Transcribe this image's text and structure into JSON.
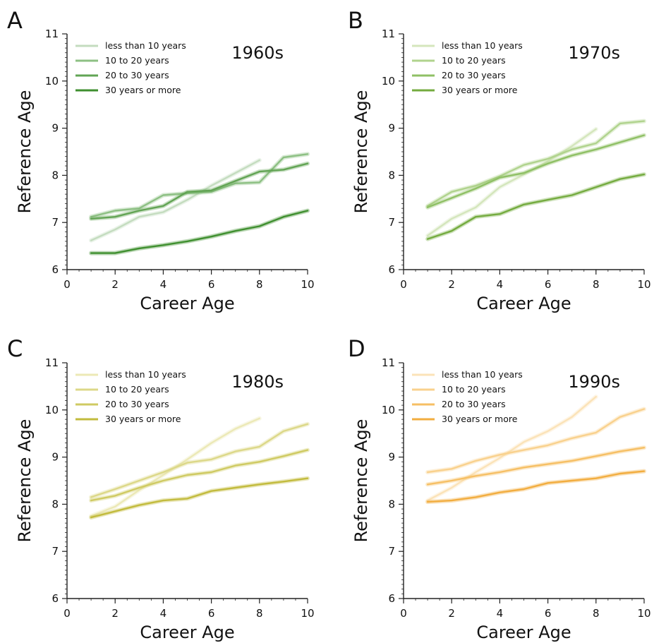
{
  "chart_data": [
    {
      "type": "line",
      "panel": "A",
      "title": "1960s",
      "xlabel": "Career Age",
      "ylabel": "Reference Age",
      "xlim": [
        0,
        10
      ],
      "ylim": [
        6,
        11
      ],
      "xticks": [
        "0",
        "2",
        "4",
        "6",
        "8",
        "10"
      ],
      "yticks": [
        "6",
        "7",
        "8",
        "9",
        "10",
        "11"
      ],
      "legend_position": "top-left",
      "colors": [
        "#c4dcbf",
        "#8dc083",
        "#62a454",
        "#3f8f2f"
      ],
      "series": [
        {
          "name": "less than 10 years",
          "x": [
            1,
            2,
            3,
            4,
            5,
            6,
            7,
            8
          ],
          "y": [
            6.62,
            6.85,
            7.12,
            7.22,
            7.48,
            7.78,
            8.05,
            8.32
          ]
        },
        {
          "name": "10 to 20 years",
          "x": [
            1,
            2,
            3,
            4,
            5,
            6,
            7,
            8,
            9,
            10
          ],
          "y": [
            7.12,
            7.25,
            7.3,
            7.58,
            7.62,
            7.65,
            7.83,
            7.85,
            8.38,
            8.45
          ]
        },
        {
          "name": "20 to 30 years",
          "x": [
            1,
            2,
            3,
            4,
            5,
            6,
            7,
            8,
            9,
            10
          ],
          "y": [
            7.08,
            7.12,
            7.25,
            7.35,
            7.65,
            7.68,
            7.88,
            8.08,
            8.12,
            8.25
          ]
        },
        {
          "name": "30 years or more",
          "x": [
            1,
            2,
            3,
            4,
            5,
            6,
            7,
            8,
            9,
            10
          ],
          "y": [
            6.35,
            6.35,
            6.45,
            6.52,
            6.6,
            6.7,
            6.82,
            6.92,
            7.12,
            7.25
          ]
        }
      ]
    },
    {
      "type": "line",
      "panel": "B",
      "title": "1970s",
      "xlabel": "Career Age",
      "ylabel": "Reference Age",
      "xlim": [
        0,
        10
      ],
      "ylim": [
        6,
        11
      ],
      "xticks": [
        "0",
        "2",
        "4",
        "6",
        "8",
        "10"
      ],
      "yticks": [
        "6",
        "7",
        "8",
        "9",
        "10",
        "11"
      ],
      "legend_position": "top-left",
      "colors": [
        "#d4e6bc",
        "#b0d38d",
        "#8fc065",
        "#74ab3f"
      ],
      "series": [
        {
          "name": "less than 10 years",
          "x": [
            1,
            2,
            3,
            4,
            5,
            6,
            7,
            8
          ],
          "y": [
            6.72,
            7.08,
            7.32,
            7.75,
            8.02,
            8.3,
            8.62,
            8.98
          ]
        },
        {
          "name": "10 to 20 years",
          "x": [
            1,
            2,
            3,
            4,
            5,
            6,
            7,
            8,
            9,
            10
          ],
          "y": [
            7.35,
            7.65,
            7.78,
            7.98,
            8.22,
            8.35,
            8.55,
            8.68,
            9.1,
            9.15
          ]
        },
        {
          "name": "20 to 30 years",
          "x": [
            1,
            2,
            3,
            4,
            5,
            6,
            7,
            8,
            9,
            10
          ],
          "y": [
            7.32,
            7.52,
            7.72,
            7.95,
            8.05,
            8.25,
            8.42,
            8.55,
            8.7,
            8.85
          ]
        },
        {
          "name": "30 years or more",
          "x": [
            1,
            2,
            3,
            4,
            5,
            6,
            7,
            8,
            9,
            10
          ],
          "y": [
            6.65,
            6.82,
            7.12,
            7.18,
            7.38,
            7.48,
            7.58,
            7.75,
            7.92,
            8.02
          ]
        }
      ]
    },
    {
      "type": "line",
      "panel": "C",
      "title": "1980s",
      "xlabel": "Career Age",
      "ylabel": "Reference Age",
      "xlim": [
        0,
        10
      ],
      "ylim": [
        6,
        11
      ],
      "xticks": [
        "0",
        "2",
        "4",
        "6",
        "8",
        "10"
      ],
      "yticks": [
        "6",
        "7",
        "8",
        "9",
        "10",
        "11"
      ],
      "legend_position": "top-left",
      "colors": [
        "#ece9b6",
        "#dcd888",
        "#cfca62",
        "#c2bb3d"
      ],
      "series": [
        {
          "name": "less than 10 years",
          "x": [
            1,
            2,
            3,
            4,
            5,
            6,
            7,
            8
          ],
          "y": [
            7.75,
            7.95,
            8.3,
            8.62,
            8.95,
            9.3,
            9.6,
            9.82
          ]
        },
        {
          "name": "10 to 20 years",
          "x": [
            1,
            2,
            3,
            4,
            5,
            6,
            7,
            8,
            9,
            10
          ],
          "y": [
            8.15,
            8.32,
            8.5,
            8.68,
            8.88,
            8.95,
            9.12,
            9.22,
            9.55,
            9.7
          ]
        },
        {
          "name": "20 to 30 years",
          "x": [
            1,
            2,
            3,
            4,
            5,
            6,
            7,
            8,
            9,
            10
          ],
          "y": [
            8.08,
            8.18,
            8.35,
            8.5,
            8.62,
            8.68,
            8.82,
            8.9,
            9.02,
            9.15
          ]
        },
        {
          "name": "30 years or more",
          "x": [
            1,
            2,
            3,
            4,
            5,
            6,
            7,
            8,
            9,
            10
          ],
          "y": [
            7.72,
            7.85,
            7.98,
            8.08,
            8.12,
            8.28,
            8.35,
            8.42,
            8.48,
            8.55
          ]
        }
      ]
    },
    {
      "type": "line",
      "panel": "D",
      "title": "1990s",
      "xlabel": "Career Age",
      "ylabel": "Reference Age",
      "xlim": [
        0,
        10
      ],
      "ylim": [
        6,
        11
      ],
      "xticks": [
        "0",
        "2",
        "4",
        "6",
        "8",
        "10"
      ],
      "yticks": [
        "6",
        "7",
        "8",
        "9",
        "10",
        "11"
      ],
      "legend_position": "top-left",
      "colors": [
        "#fbe3b8",
        "#f9d18d",
        "#f6bf64",
        "#f2ad3f"
      ],
      "series": [
        {
          "name": "less than 10 years",
          "x": [
            1,
            2,
            3,
            4,
            5,
            6,
            7,
            8
          ],
          "y": [
            8.08,
            8.35,
            8.68,
            8.98,
            9.32,
            9.55,
            9.85,
            10.28
          ]
        },
        {
          "name": "10 to 20 years",
          "x": [
            1,
            2,
            3,
            4,
            5,
            6,
            7,
            8,
            9,
            10
          ],
          "y": [
            8.68,
            8.75,
            8.92,
            9.05,
            9.15,
            9.25,
            9.4,
            9.52,
            9.85,
            10.02
          ]
        },
        {
          "name": "20 to 30 years",
          "x": [
            1,
            2,
            3,
            4,
            5,
            6,
            7,
            8,
            9,
            10
          ],
          "y": [
            8.42,
            8.5,
            8.6,
            8.68,
            8.78,
            8.85,
            8.92,
            9.02,
            9.12,
            9.2
          ]
        },
        {
          "name": "30 years or more",
          "x": [
            1,
            2,
            3,
            4,
            5,
            6,
            7,
            8,
            9,
            10
          ],
          "y": [
            8.05,
            8.08,
            8.15,
            8.25,
            8.32,
            8.45,
            8.5,
            8.55,
            8.65,
            8.7
          ]
        }
      ]
    }
  ]
}
